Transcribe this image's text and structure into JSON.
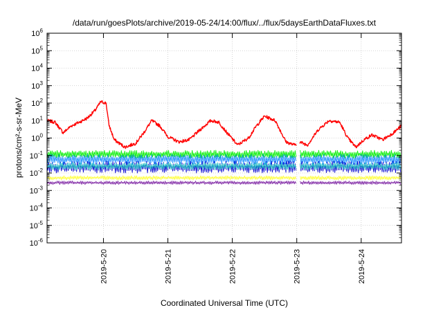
{
  "chart_data": {
    "type": "line",
    "title": "/data/run/goesPlots/archive/2019-05-24/14:00/flux/../flux/5daysEarthDataFluxes.txt",
    "xlabel": "Coordinated Universal Time (UTC)",
    "ylabel": "protons/cm²-s-sr-MeV",
    "y_scale": "log",
    "ylim_exponents": [
      -6,
      6
    ],
    "xlim_days": [
      "2019-05-19 03:00",
      "2019-05-24 15:00"
    ],
    "x_ticks": [
      "2019-5-20",
      "2019-5-21",
      "2019-5-22",
      "2019-5-23",
      "2019-5-24"
    ],
    "y_tick_mantissa": "10",
    "y_tick_exponents": [
      "6",
      "5",
      "4",
      "3",
      "2",
      "1",
      "0",
      "-1",
      "-2",
      "-3",
      "-4",
      "-5",
      "-6"
    ],
    "grid": true,
    "legend": "none",
    "data_gap": [
      "2019-05-23 00:00",
      "2019-05-23 01:00"
    ],
    "series": [
      {
        "color": "#ff0000",
        "x": [
          "2019-05-19 03:00",
          "2019-05-19 06:00",
          "2019-05-19 09:00",
          "2019-05-19 12:00",
          "2019-05-19 15:00",
          "2019-05-19 18:00",
          "2019-05-19 21:00",
          "2019-05-19 23:00",
          "2019-05-20 01:00",
          "2019-05-20 02:00",
          "2019-05-20 04:00",
          "2019-05-20 08:00",
          "2019-05-20 12:00",
          "2019-05-20 15:00",
          "2019-05-20 18:00",
          "2019-05-20 21:00",
          "2019-05-21 00:00",
          "2019-05-21 04:00",
          "2019-05-21 08:00",
          "2019-05-21 12:00",
          "2019-05-21 16:00",
          "2019-05-21 19:00",
          "2019-05-21 22:00",
          "2019-05-22 02:00",
          "2019-05-22 06:00",
          "2019-05-22 09:00",
          "2019-05-22 12:00",
          "2019-05-22 16:00",
          "2019-05-22 20:00",
          "2019-05-22 23:00",
          "2019-05-23 01:00",
          "2019-05-23 04:00",
          "2019-05-23 08:00",
          "2019-05-23 12:00",
          "2019-05-23 16:00",
          "2019-05-23 19:00",
          "2019-05-23 22:00",
          "2019-05-24 01:00",
          "2019-05-24 04:00",
          "2019-05-24 08:00",
          "2019-05-24 12:00",
          "2019-05-24 15:00"
        ],
        "values": [
          10,
          8,
          2,
          5,
          8,
          14,
          40,
          120,
          100,
          6,
          0.8,
          0.3,
          0.5,
          2,
          10,
          5,
          1.2,
          0.6,
          0.8,
          3,
          10,
          8,
          2,
          0.4,
          1,
          5,
          18,
          10,
          0.6,
          0.4,
          0.6,
          0.4,
          3,
          10,
          8,
          1,
          0.3,
          0.8,
          1.5,
          0.8,
          2,
          5
        ]
      },
      {
        "color": "#00ee00",
        "band": [
          0.07,
          0.2
        ]
      },
      {
        "color": "#1e90ff",
        "band": [
          0.03,
          0.12
        ]
      },
      {
        "color": "#0000cd",
        "band": [
          0.01,
          0.05
        ]
      },
      {
        "color": "#20c0c0",
        "band": [
          0.015,
          0.04
        ]
      },
      {
        "color": "#ffff33",
        "band": [
          0.004,
          0.007
        ]
      },
      {
        "color": "#7b1fa2",
        "band": [
          0.0022,
          0.0035
        ]
      }
    ]
  }
}
